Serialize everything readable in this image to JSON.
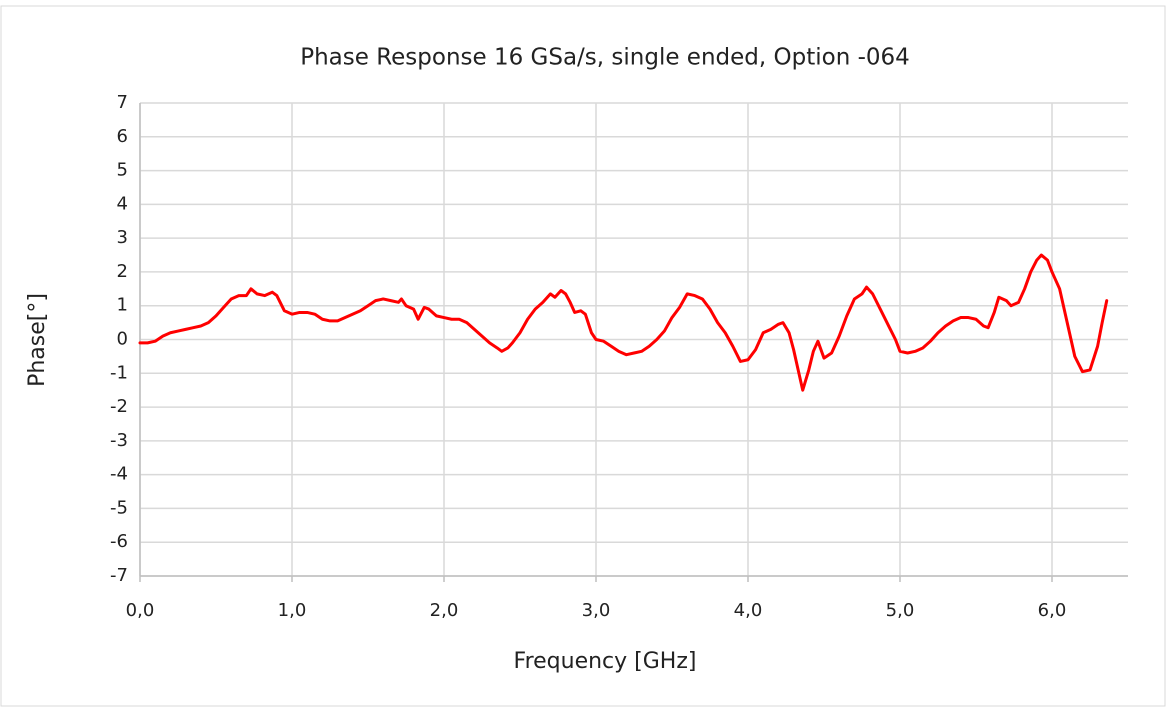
{
  "chart_data": {
    "type": "line",
    "title": "Phase Response 16 GSa/s, single ended, Option -064",
    "x_label": "Frequency [GHz]",
    "y_label": "Phase[°]",
    "color": "#ff0000",
    "grid": true,
    "xlim": [
      0,
      6.5
    ],
    "ylim": [
      -7,
      7
    ],
    "xticks": [
      {
        "value": 0,
        "label": "0,0"
      },
      {
        "value": 1,
        "label": "1,0"
      },
      {
        "value": 2,
        "label": "2,0"
      },
      {
        "value": 3,
        "label": "3,0"
      },
      {
        "value": 4,
        "label": "4,0"
      },
      {
        "value": 5,
        "label": "5,0"
      },
      {
        "value": 6,
        "label": "6,0"
      }
    ],
    "yticks": [
      -7,
      -6,
      -5,
      -4,
      -3,
      -2,
      -1,
      0,
      1,
      2,
      3,
      4,
      5,
      6,
      7
    ],
    "x": [
      0,
      0.05,
      0.1,
      0.15,
      0.2,
      0.25,
      0.3,
      0.35,
      0.4,
      0.45,
      0.5,
      0.55,
      0.6,
      0.65,
      0.7,
      0.73,
      0.77,
      0.82,
      0.87,
      0.9,
      0.95,
      1.0,
      1.05,
      1.1,
      1.15,
      1.2,
      1.25,
      1.3,
      1.35,
      1.4,
      1.45,
      1.5,
      1.55,
      1.6,
      1.65,
      1.7,
      1.72,
      1.75,
      1.8,
      1.83,
      1.87,
      1.9,
      1.95,
      2.0,
      2.05,
      2.1,
      2.15,
      2.2,
      2.25,
      2.3,
      2.35,
      2.38,
      2.42,
      2.45,
      2.5,
      2.55,
      2.6,
      2.65,
      2.7,
      2.73,
      2.77,
      2.8,
      2.83,
      2.86,
      2.9,
      2.93,
      2.97,
      3.0,
      3.05,
      3.1,
      3.15,
      3.2,
      3.25,
      3.3,
      3.35,
      3.4,
      3.45,
      3.5,
      3.55,
      3.6,
      3.65,
      3.7,
      3.75,
      3.8,
      3.85,
      3.9,
      3.95,
      4.0,
      4.05,
      4.1,
      4.15,
      4.2,
      4.23,
      4.27,
      4.3,
      4.33,
      4.36,
      4.4,
      4.43,
      4.46,
      4.5,
      4.55,
      4.6,
      4.65,
      4.7,
      4.75,
      4.78,
      4.82,
      4.87,
      4.92,
      4.97,
      5.0,
      5.05,
      5.1,
      5.15,
      5.2,
      5.25,
      5.3,
      5.35,
      5.4,
      5.45,
      5.5,
      5.55,
      5.58,
      5.62,
      5.65,
      5.7,
      5.73,
      5.78,
      5.82,
      5.86,
      5.9,
      5.93,
      5.97,
      6.0,
      6.05,
      6.1,
      6.15,
      6.2,
      6.25,
      6.3,
      6.33,
      6.36
    ],
    "values": [
      -0.1,
      -0.1,
      -0.05,
      0.1,
      0.2,
      0.25,
      0.3,
      0.35,
      0.4,
      0.5,
      0.7,
      0.95,
      1.2,
      1.3,
      1.3,
      1.5,
      1.35,
      1.3,
      1.4,
      1.3,
      0.85,
      0.75,
      0.8,
      0.8,
      0.75,
      0.6,
      0.55,
      0.55,
      0.65,
      0.75,
      0.85,
      1.0,
      1.15,
      1.2,
      1.15,
      1.1,
      1.2,
      1.0,
      0.9,
      0.6,
      0.95,
      0.9,
      0.7,
      0.65,
      0.6,
      0.6,
      0.5,
      0.3,
      0.1,
      -0.1,
      -0.25,
      -0.35,
      -0.25,
      -0.1,
      0.2,
      0.6,
      0.9,
      1.1,
      1.35,
      1.25,
      1.45,
      1.35,
      1.1,
      0.8,
      0.85,
      0.75,
      0.2,
      0.0,
      -0.05,
      -0.2,
      -0.35,
      -0.45,
      -0.4,
      -0.35,
      -0.2,
      0.0,
      0.25,
      0.65,
      0.95,
      1.35,
      1.3,
      1.2,
      0.9,
      0.5,
      0.2,
      -0.2,
      -0.65,
      -0.6,
      -0.3,
      0.2,
      0.3,
      0.45,
      0.5,
      0.2,
      -0.3,
      -0.9,
      -1.5,
      -0.9,
      -0.35,
      -0.05,
      -0.55,
      -0.4,
      0.1,
      0.7,
      1.2,
      1.35,
      1.55,
      1.35,
      0.9,
      0.45,
      0.0,
      -0.35,
      -0.4,
      -0.35,
      -0.25,
      -0.05,
      0.2,
      0.4,
      0.55,
      0.65,
      0.65,
      0.6,
      0.4,
      0.35,
      0.8,
      1.25,
      1.15,
      1.0,
      1.1,
      1.5,
      2.0,
      2.35,
      2.5,
      2.35,
      2.0,
      1.5,
      0.5,
      -0.5,
      -0.95,
      -0.9,
      -0.2,
      0.5,
      1.15
    ]
  }
}
